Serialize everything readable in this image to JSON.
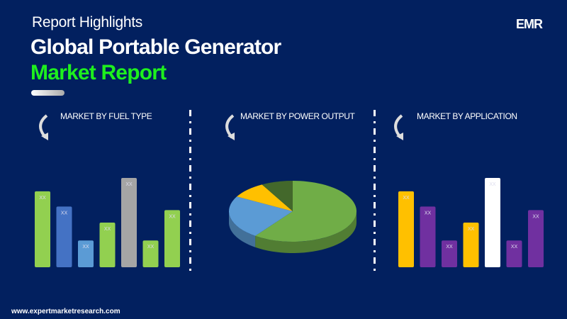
{
  "header": {
    "subtitle": "Report Highlights",
    "title_line1": "Global Portable Generator",
    "title_line2": "Market Report",
    "logo": "EMR"
  },
  "footer": {
    "url": "www.expertmarketresearch.com"
  },
  "colors": {
    "background": "#02205f",
    "accent": "#1ef01e"
  },
  "chart_data": [
    {
      "type": "bar",
      "title": "MARKET BY FUEL TYPE",
      "categories": [
        "",
        "",
        "",
        "",
        "",
        "",
        ""
      ],
      "values": [
        0.85,
        0.68,
        0.3,
        0.5,
        1.0,
        0.3,
        0.64
      ],
      "data_labels": [
        "XX",
        "XX",
        "XX",
        "XX",
        "XX",
        "XX",
        "XX"
      ],
      "colors": [
        "#92d050",
        "#4472c4",
        "#5b9bd5",
        "#92d050",
        "#a5a5a5",
        "#92d050",
        "#92d050"
      ]
    },
    {
      "type": "pie",
      "title": "MARKET BY POWER OUTPUT",
      "values": [
        60,
        23,
        9,
        8
      ],
      "colors": [
        "#70ad47",
        "#5b9bd5",
        "#ffc000",
        "#43682b"
      ],
      "style": "3d"
    },
    {
      "type": "bar",
      "title": "MARKET BY APPLICATION",
      "categories": [
        "",
        "",
        "",
        "",
        "",
        "",
        ""
      ],
      "values": [
        0.85,
        0.68,
        0.3,
        0.5,
        1.0,
        0.3,
        0.64
      ],
      "data_labels": [
        "XX",
        "XX",
        "XX",
        "XX",
        "XX",
        "XX",
        "XX"
      ],
      "colors": [
        "#ffc000",
        "#7030a0",
        "#7030a0",
        "#ffc000",
        "#ffffff",
        "#7030a0",
        "#7030a0"
      ]
    }
  ]
}
